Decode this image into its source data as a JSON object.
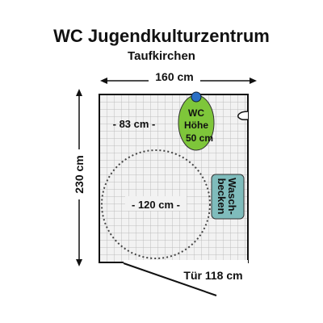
{
  "title": "WC Jugendkulturzentrum",
  "subtitle": "Taufkirchen",
  "dimensions": {
    "width": "160 cm",
    "height": "230 cm",
    "free_space": "- 83 cm -",
    "turning_circle": "- 120 cm -",
    "door": "Tür 118 cm"
  },
  "fixtures": {
    "wc_lines": [
      "WC",
      "Höhe",
      "50 cm"
    ],
    "sink_lines": [
      "Wasch-",
      "becken"
    ]
  },
  "colors": {
    "tile_grid": "#bdbdbd",
    "floor": "#f2f2f2",
    "wc_fill": "#7ec63a",
    "wc_flush_button": "#2a6fc4",
    "sink_fill": "#7fbcbc",
    "wall": "#111111"
  }
}
